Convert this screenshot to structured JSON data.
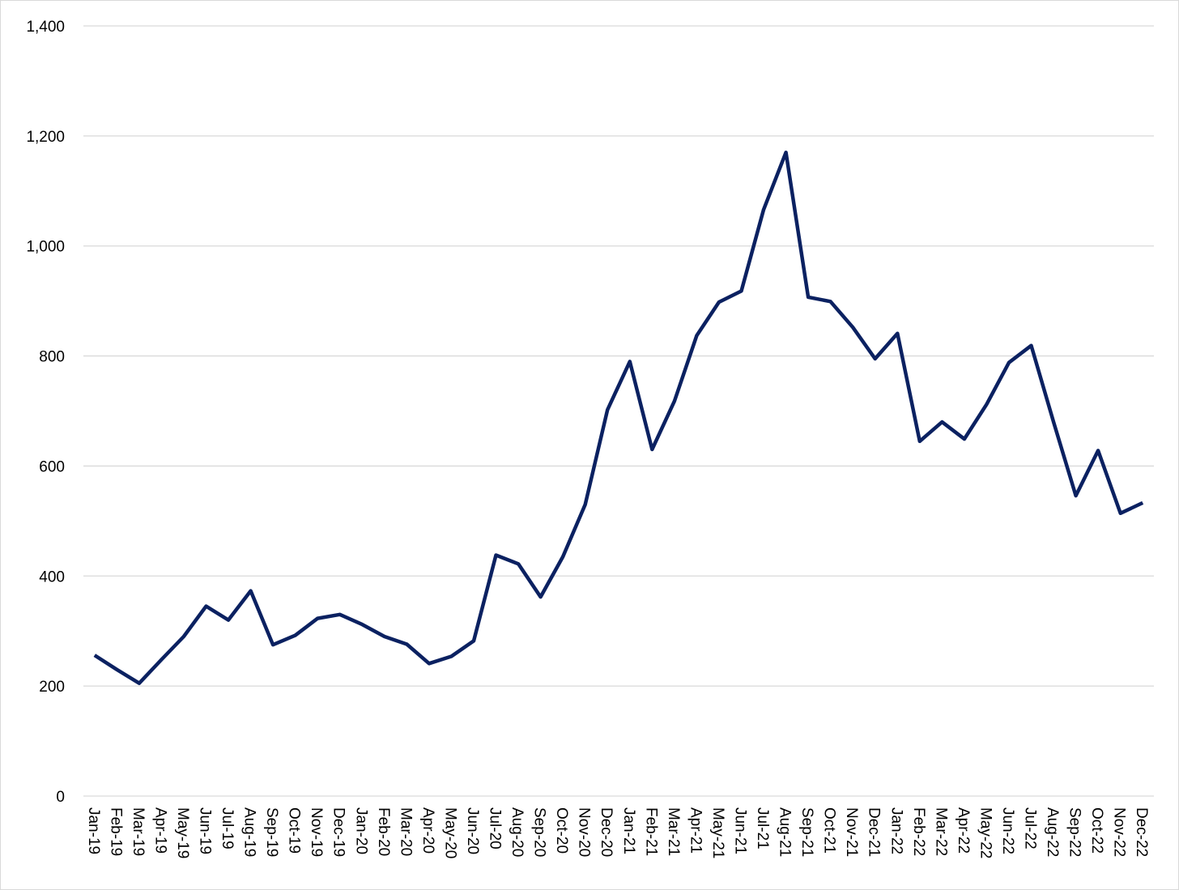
{
  "chart_data": {
    "type": "line",
    "title": "",
    "xlabel": "",
    "ylabel": "",
    "ylim": [
      0,
      1400
    ],
    "yticks": [
      0,
      200,
      400,
      600,
      800,
      1000,
      1200,
      1400
    ],
    "ytick_labels": [
      "0",
      "200",
      "400",
      "600",
      "800",
      "1,000",
      "1,200",
      "1,400"
    ],
    "grid": true,
    "legend": "none",
    "line_color": "#0b2161",
    "grid_color": "#d9d9d9",
    "categories": [
      "Jan-19",
      "Feb-19",
      "Mar-19",
      "Apr-19",
      "May-19",
      "Jun-19",
      "Jul-19",
      "Aug-19",
      "Sep-19",
      "Oct-19",
      "Nov-19",
      "Dec-19",
      "Jan-20",
      "Feb-20",
      "Mar-20",
      "Apr-20",
      "May-20",
      "Jun-20",
      "Jul-20",
      "Aug-20",
      "Sep-20",
      "Oct-20",
      "Nov-20",
      "Dec-20",
      "Jan-21",
      "Feb-21",
      "Mar-21",
      "Apr-21",
      "May-21",
      "Jun-21",
      "Jul-21",
      "Aug-21",
      "Sep-21",
      "Oct-21",
      "Nov-21",
      "Dec-21",
      "Jan-22",
      "Feb-22",
      "Mar-22",
      "Apr-22",
      "May-22",
      "Jun-22",
      "Jul-22",
      "Aug-22",
      "Sep-22",
      "Oct-22",
      "Nov-22",
      "Dec-22"
    ],
    "series": [
      {
        "values": [
          256,
          230,
          205,
          248,
          290,
          345,
          320,
          373,
          275,
          292,
          323,
          330,
          312,
          290,
          276,
          241,
          254,
          282,
          438,
          422,
          362,
          435,
          530,
          702,
          790,
          630,
          718,
          837,
          898,
          918,
          1066,
          1170,
          907,
          899,
          852,
          795,
          841,
          645,
          680,
          649,
          712,
          788,
          819,
          680,
          546,
          628,
          514,
          533
        ]
      }
    ]
  }
}
